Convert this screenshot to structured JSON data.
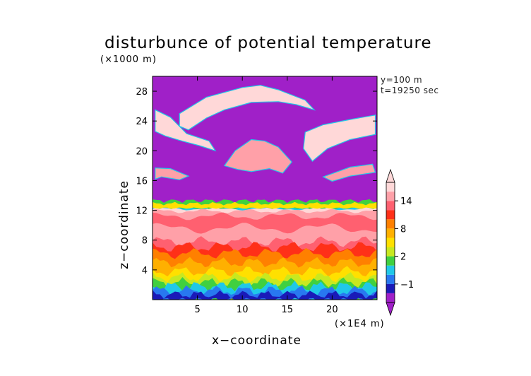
{
  "chart_data": {
    "type": "heatmap",
    "title": "disturbunce of potential temperature",
    "xlabel": "x−coordinate",
    "ylabel": "z−coordinate",
    "x_unit": "(×1E4 m)",
    "y_unit": "(×1000 m)",
    "annotations": [
      "y=100  m",
      "t=19250 sec"
    ],
    "xlim": [
      0,
      25
    ],
    "ylim": [
      0,
      30
    ],
    "x_ticks": [
      5,
      10,
      15,
      20
    ],
    "y_ticks": [
      4,
      8,
      12,
      16,
      20,
      24,
      28
    ],
    "colorbar": {
      "levels": [
        -3,
        -2,
        -1,
        0,
        1,
        2,
        4,
        6,
        8,
        10,
        12,
        14,
        16
      ],
      "tick_values": [
        -1,
        2,
        8,
        14
      ],
      "tick_labels": [
        "−1",
        "2",
        "8",
        "14"
      ],
      "colors": [
        "#a020c8",
        "#1a1ab8",
        "#2878f0",
        "#20c8e8",
        "#40d040",
        "#c8e820",
        "#ffe000",
        "#ffb000",
        "#ff8000",
        "#ff3018",
        "#ff6070",
        "#ffa0a8",
        "#ffd8d8"
      ],
      "extend": "both"
    },
    "field_description_rows": [
      {
        "z_range": [
          0,
          1
        ],
        "level": -1
      },
      {
        "z_range": [
          1,
          2
        ],
        "level": 1
      },
      {
        "z_range": [
          2,
          4
        ],
        "level": 4
      },
      {
        "z_range": [
          4,
          7
        ],
        "level": 8
      },
      {
        "z_range": [
          7,
          11
        ],
        "level": 12
      },
      {
        "z_range": [
          11,
          12.3
        ],
        "level": 12
      },
      {
        "z_range": [
          12.3,
          13
        ],
        "level": 0
      },
      {
        "z_range": [
          13,
          30
        ],
        "level": -3
      }
    ]
  },
  "colors": {
    "background": "#a020c8",
    "warm_layer": "#ffd0d0",
    "neutral_band": "#1a1ab8"
  }
}
